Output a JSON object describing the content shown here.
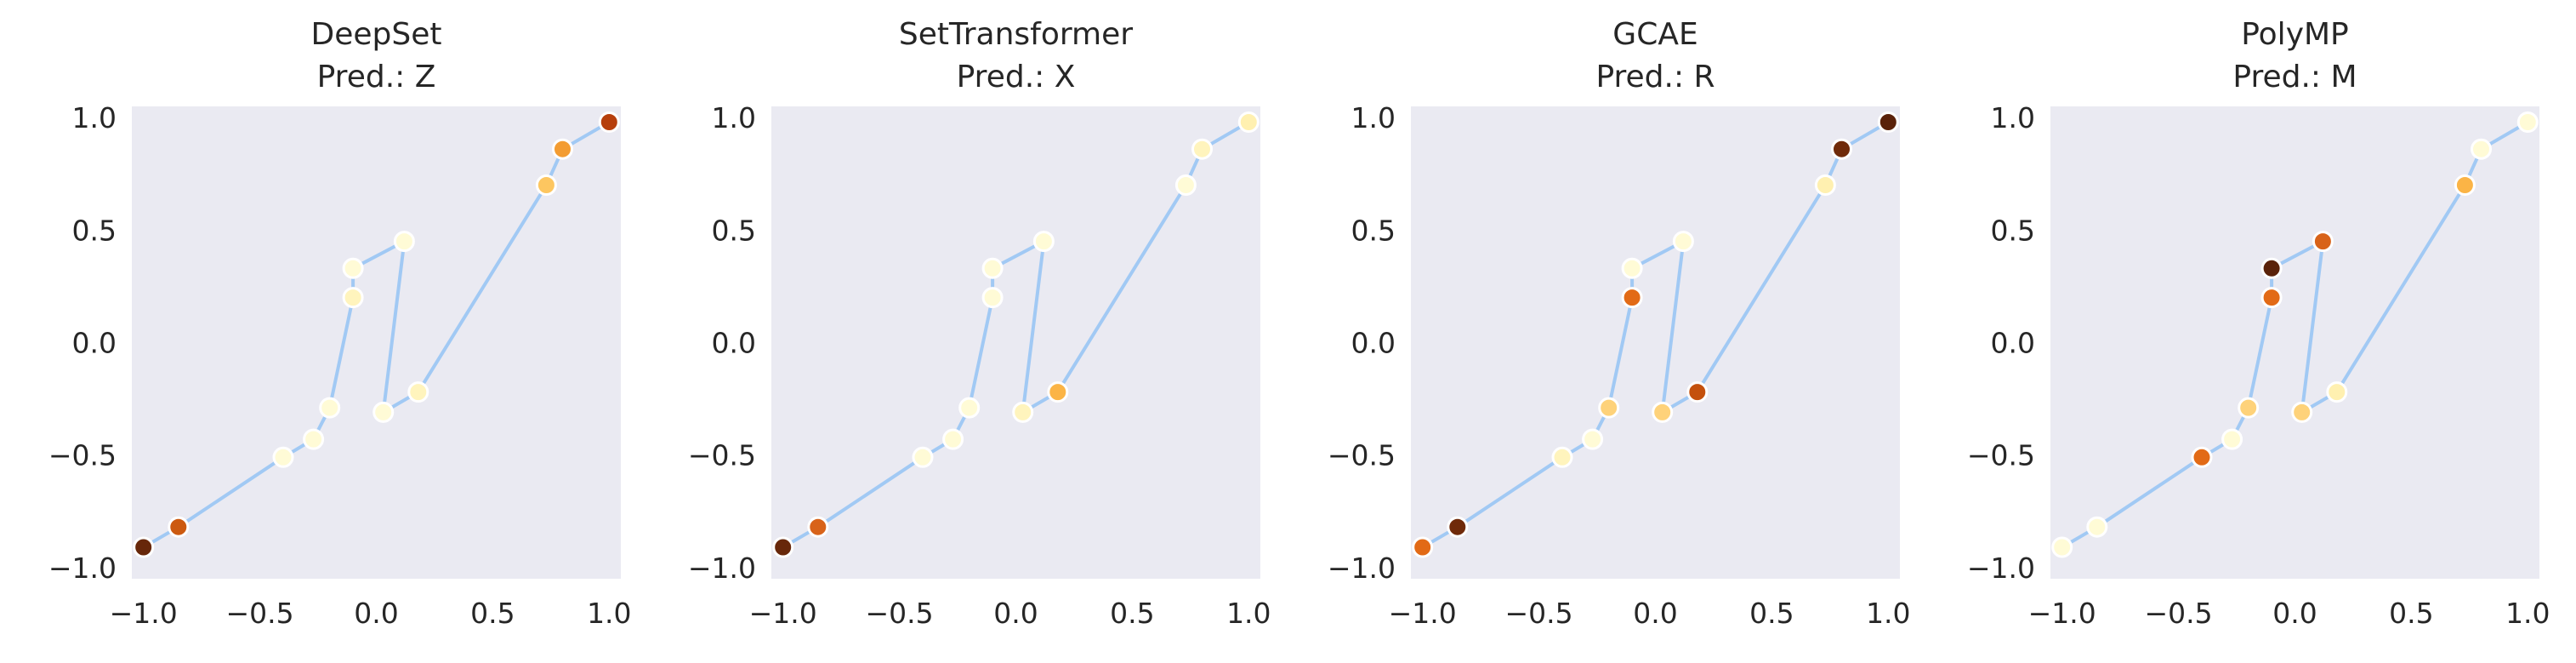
{
  "chart_data": [
    {
      "type": "line",
      "title": "DeepSet",
      "subtitle": "Pred.: Z",
      "xlim": [
        -1.05,
        1.05
      ],
      "ylim": [
        -1.05,
        1.05
      ],
      "xticks": [
        -1.0,
        -0.5,
        0.0,
        0.5,
        1.0
      ],
      "yticks": [
        -1.0,
        -0.5,
        0.0,
        0.5,
        1.0
      ],
      "xtick_labels": [
        "−1.0",
        "−0.5",
        "0.0",
        "0.5",
        "1.0"
      ],
      "ytick_labels": [
        "−1.0",
        "−0.5",
        "0.0",
        "0.5",
        "1.0"
      ],
      "grid": false,
      "background": "#eaeaf2",
      "line_color": "#a1c9f4",
      "points": [
        {
          "x": -1.0,
          "y": -0.91,
          "color": "#67270a"
        },
        {
          "x": -0.85,
          "y": -0.82,
          "color": "#cc5a10"
        },
        {
          "x": -0.4,
          "y": -0.51,
          "color": "#fffbd6"
        },
        {
          "x": -0.27,
          "y": -0.43,
          "color": "#fffbd6"
        },
        {
          "x": -0.2,
          "y": -0.29,
          "color": "#fffbd6"
        },
        {
          "x": -0.1,
          "y": 0.2,
          "color": "#fff4bd"
        },
        {
          "x": -0.1,
          "y": 0.33,
          "color": "#fffbd6"
        },
        {
          "x": 0.12,
          "y": 0.45,
          "color": "#fffbd6"
        },
        {
          "x": 0.03,
          "y": -0.31,
          "color": "#fffbd6"
        },
        {
          "x": 0.18,
          "y": -0.22,
          "color": "#fff4bd"
        },
        {
          "x": 0.73,
          "y": 0.7,
          "color": "#fdc660"
        },
        {
          "x": 0.8,
          "y": 0.86,
          "color": "#f39c32"
        },
        {
          "x": 1.0,
          "y": 0.98,
          "color": "#b63f0c"
        }
      ]
    },
    {
      "type": "line",
      "title": "SetTransformer",
      "subtitle": "Pred.: X",
      "xlim": [
        -1.05,
        1.05
      ],
      "ylim": [
        -1.05,
        1.05
      ],
      "xticks": [
        -1.0,
        -0.5,
        0.0,
        0.5,
        1.0
      ],
      "yticks": [
        -1.0,
        -0.5,
        0.0,
        0.5,
        1.0
      ],
      "xtick_labels": [
        "−1.0",
        "−0.5",
        "0.0",
        "0.5",
        "1.0"
      ],
      "ytick_labels": [
        "−1.0",
        "−0.5",
        "0.0",
        "0.5",
        "1.0"
      ],
      "grid": false,
      "background": "#eaeaf2",
      "line_color": "#a1c9f4",
      "points": [
        {
          "x": -1.0,
          "y": -0.91,
          "color": "#67270a"
        },
        {
          "x": -0.85,
          "y": -0.82,
          "color": "#d8631a"
        },
        {
          "x": -0.4,
          "y": -0.51,
          "color": "#fffbd6"
        },
        {
          "x": -0.27,
          "y": -0.43,
          "color": "#fffbd6"
        },
        {
          "x": -0.2,
          "y": -0.29,
          "color": "#fffbd6"
        },
        {
          "x": -0.1,
          "y": 0.2,
          "color": "#fffbd6"
        },
        {
          "x": -0.1,
          "y": 0.33,
          "color": "#fffbd6"
        },
        {
          "x": 0.12,
          "y": 0.45,
          "color": "#fffbd6"
        },
        {
          "x": 0.03,
          "y": -0.31,
          "color": "#fff4bd"
        },
        {
          "x": 0.18,
          "y": -0.22,
          "color": "#fbb446"
        },
        {
          "x": 0.73,
          "y": 0.7,
          "color": "#fffbd6"
        },
        {
          "x": 0.8,
          "y": 0.86,
          "color": "#fff4bd"
        },
        {
          "x": 1.0,
          "y": 0.98,
          "color": "#fff0b0"
        }
      ]
    },
    {
      "type": "line",
      "title": "GCAE",
      "subtitle": "Pred.: R",
      "xlim": [
        -1.05,
        1.05
      ],
      "ylim": [
        -1.05,
        1.05
      ],
      "xticks": [
        -1.0,
        -0.5,
        0.0,
        0.5,
        1.0
      ],
      "yticks": [
        -1.0,
        -0.5,
        0.0,
        0.5,
        1.0
      ],
      "xtick_labels": [
        "−1.0",
        "−0.5",
        "0.0",
        "0.5",
        "1.0"
      ],
      "ytick_labels": [
        "−1.0",
        "−0.5",
        "0.0",
        "0.5",
        "1.0"
      ],
      "grid": false,
      "background": "#eaeaf2",
      "line_color": "#a1c9f4",
      "points": [
        {
          "x": -1.0,
          "y": -0.91,
          "color": "#e26a16"
        },
        {
          "x": -0.85,
          "y": -0.82,
          "color": "#6f2a0a"
        },
        {
          "x": -0.4,
          "y": -0.51,
          "color": "#fff4bd"
        },
        {
          "x": -0.27,
          "y": -0.43,
          "color": "#fffbd6"
        },
        {
          "x": -0.2,
          "y": -0.29,
          "color": "#fed27a"
        },
        {
          "x": -0.1,
          "y": 0.2,
          "color": "#e26a16"
        },
        {
          "x": -0.1,
          "y": 0.33,
          "color": "#fffbd6"
        },
        {
          "x": 0.12,
          "y": 0.45,
          "color": "#fffbd6"
        },
        {
          "x": 0.03,
          "y": -0.31,
          "color": "#fed27a"
        },
        {
          "x": 0.18,
          "y": -0.22,
          "color": "#c4500d"
        },
        {
          "x": 0.73,
          "y": 0.7,
          "color": "#fff0b0"
        },
        {
          "x": 0.8,
          "y": 0.86,
          "color": "#6f2a0a"
        },
        {
          "x": 1.0,
          "y": 0.98,
          "color": "#5a220a"
        }
      ]
    },
    {
      "type": "line",
      "title": "PolyMP",
      "subtitle": "Pred.: M",
      "xlim": [
        -1.05,
        1.05
      ],
      "ylim": [
        -1.05,
        1.05
      ],
      "xticks": [
        -1.0,
        -0.5,
        0.0,
        0.5,
        1.0
      ],
      "yticks": [
        -1.0,
        -0.5,
        0.0,
        0.5,
        1.0
      ],
      "xtick_labels": [
        "−1.0",
        "−0.5",
        "0.0",
        "0.5",
        "1.0"
      ],
      "ytick_labels": [
        "−1.0",
        "−0.5",
        "0.0",
        "0.5",
        "1.0"
      ],
      "grid": false,
      "background": "#eaeaf2",
      "line_color": "#a1c9f4",
      "points": [
        {
          "x": -1.0,
          "y": -0.91,
          "color": "#fffbd6"
        },
        {
          "x": -0.85,
          "y": -0.82,
          "color": "#fffbd6"
        },
        {
          "x": -0.4,
          "y": -0.51,
          "color": "#e26a16"
        },
        {
          "x": -0.27,
          "y": -0.43,
          "color": "#fffbd6"
        },
        {
          "x": -0.2,
          "y": -0.29,
          "color": "#fed27a"
        },
        {
          "x": -0.1,
          "y": 0.2,
          "color": "#e26a16"
        },
        {
          "x": -0.1,
          "y": 0.33,
          "color": "#5a220a"
        },
        {
          "x": 0.12,
          "y": 0.45,
          "color": "#d8631a"
        },
        {
          "x": 0.03,
          "y": -0.31,
          "color": "#fed27a"
        },
        {
          "x": 0.18,
          "y": -0.22,
          "color": "#fff0b0"
        },
        {
          "x": 0.73,
          "y": 0.7,
          "color": "#fbb446"
        },
        {
          "x": 0.8,
          "y": 0.86,
          "color": "#fffbd6"
        },
        {
          "x": 1.0,
          "y": 0.98,
          "color": "#fffbd6"
        }
      ]
    }
  ]
}
